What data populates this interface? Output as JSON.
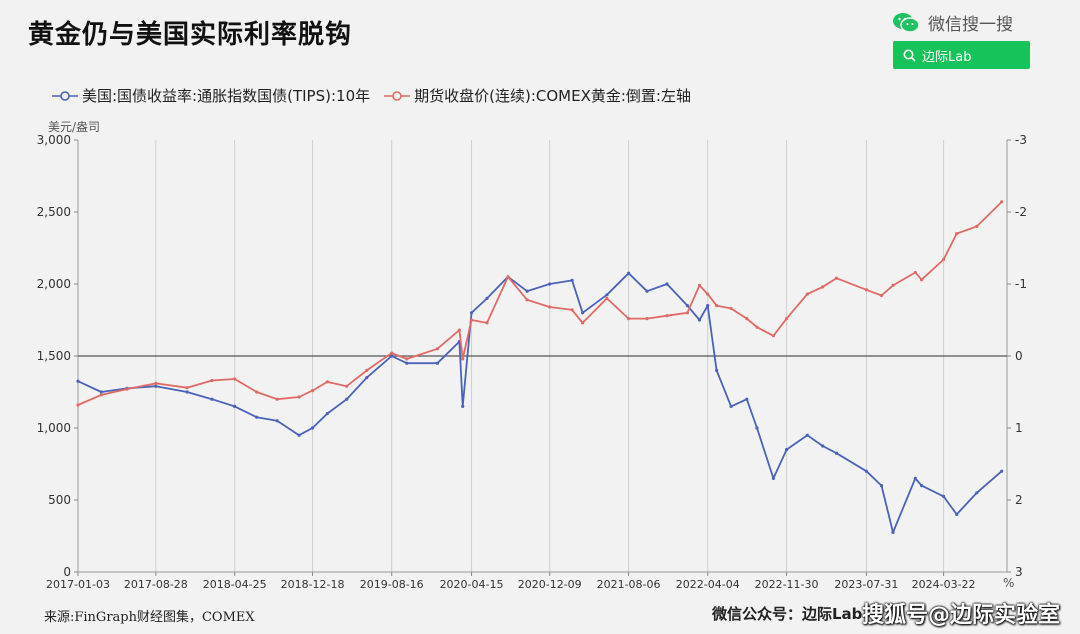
{
  "header": {
    "title": "黄金仍与美国实际利率脱钩"
  },
  "brand": {
    "wechat_label": "微信搜一搜",
    "wechat_icon": "wechat-icon",
    "search_icon": "search-icon",
    "search_label": "边际Lab",
    "search_color": "#16c25a"
  },
  "axis_units": {
    "left": "美元/盎司",
    "right": "%"
  },
  "footer": {
    "source": "来源:FinGraph财经图集，COMEX",
    "wechat": "微信公众号：边际Lab",
    "watermark": "搜狐号@边际实验室"
  },
  "chart_data": {
    "type": "line",
    "title": "黄金仍与美国实际利率脱钩",
    "x_tick_labels": [
      "2017-01-03",
      "2017-08-28",
      "2018-04-25",
      "2018-12-18",
      "2019-08-16",
      "2020-04-15",
      "2020-12-09",
      "2021-08-06",
      "2022-04-04",
      "2022-11-30",
      "2023-07-31",
      "2024-03-22"
    ],
    "left_axis": {
      "label": "美元/盎司",
      "ylim": [
        0,
        3000
      ],
      "ticks": [
        0,
        500,
        1000,
        1500,
        2000,
        2500,
        3000
      ],
      "tick_labels": [
        "0",
        "500",
        "1,000",
        "1,500",
        "2,000",
        "2,500",
        "3,000"
      ]
    },
    "right_axis": {
      "label": "%",
      "inverted": true,
      "ylim": [
        -3,
        3
      ],
      "ticks": [
        -3,
        -2,
        -1,
        0,
        1,
        2,
        3
      ],
      "tick_labels": [
        "-3",
        "-2",
        "-1",
        "0",
        "1",
        "2",
        "3"
      ]
    },
    "reference_line": {
      "axis": "left",
      "value": 1500
    },
    "grid": "vertical",
    "series": [
      {
        "name": "美国:国债收益率:通胀指数国债(TIPS):10年",
        "axis": "right",
        "color": "#4a63b8",
        "x": [
          "2017-01-03",
          "2017-03-15",
          "2017-06-01",
          "2017-08-28",
          "2017-12-01",
          "2018-02-15",
          "2018-04-25",
          "2018-07-01",
          "2018-09-01",
          "2018-11-07",
          "2018-12-18",
          "2019-02-01",
          "2019-04-01",
          "2019-06-01",
          "2019-08-16",
          "2019-10-01",
          "2020-01-02",
          "2020-03-09",
          "2020-03-19",
          "2020-04-15",
          "2020-06-01",
          "2020-08-04",
          "2020-10-01",
          "2020-12-09",
          "2021-02-15",
          "2021-03-19",
          "2021-06-01",
          "2021-08-06",
          "2021-10-01",
          "2021-12-01",
          "2022-02-01",
          "2022-03-10",
          "2022-04-04",
          "2022-05-01",
          "2022-06-14",
          "2022-08-01",
          "2022-09-01",
          "2022-10-21",
          "2022-11-30",
          "2023-02-01",
          "2023-03-20",
          "2023-05-01",
          "2023-07-31",
          "2023-09-15",
          "2023-10-20",
          "2023-12-27",
          "2024-01-15",
          "2024-03-22",
          "2024-05-01",
          "2024-07-01",
          "2024-09-15"
        ],
        "y": [
          0.35,
          0.5,
          0.45,
          0.42,
          0.5,
          0.6,
          0.7,
          0.85,
          0.9,
          1.1,
          1.0,
          0.8,
          0.6,
          0.3,
          0.0,
          0.1,
          0.1,
          -0.2,
          0.7,
          -0.6,
          -0.8,
          -1.1,
          -0.9,
          -1.0,
          -1.05,
          -0.6,
          -0.85,
          -1.15,
          -0.9,
          -1.0,
          -0.7,
          -0.5,
          -0.7,
          0.2,
          0.7,
          0.6,
          1.0,
          1.7,
          1.3,
          1.1,
          1.25,
          1.35,
          1.6,
          1.8,
          2.45,
          1.7,
          1.8,
          1.95,
          2.2,
          1.9,
          1.6
        ]
      },
      {
        "name": "期货收盘价(连续):COMEX黄金:倒置:左轴",
        "axis": "left",
        "color": "#e06a66",
        "x": [
          "2017-01-03",
          "2017-03-15",
          "2017-06-01",
          "2017-08-28",
          "2017-12-01",
          "2018-02-15",
          "2018-04-25",
          "2018-07-01",
          "2018-09-01",
          "2018-11-07",
          "2018-12-18",
          "2019-02-01",
          "2019-04-01",
          "2019-06-01",
          "2019-08-16",
          "2019-10-01",
          "2020-01-02",
          "2020-03-09",
          "2020-03-19",
          "2020-04-15",
          "2020-06-01",
          "2020-08-04",
          "2020-10-01",
          "2020-12-09",
          "2021-02-15",
          "2021-03-19",
          "2021-06-01",
          "2021-08-06",
          "2021-10-01",
          "2021-12-01",
          "2022-02-01",
          "2022-03-10",
          "2022-04-04",
          "2022-05-01",
          "2022-06-14",
          "2022-08-01",
          "2022-09-01",
          "2022-10-21",
          "2022-11-30",
          "2023-02-01",
          "2023-03-20",
          "2023-05-01",
          "2023-07-31",
          "2023-09-15",
          "2023-10-20",
          "2023-12-27",
          "2024-01-15",
          "2024-03-22",
          "2024-05-01",
          "2024-07-01",
          "2024-09-15"
        ],
        "y": [
          1160,
          1230,
          1270,
          1310,
          1280,
          1330,
          1340,
          1250,
          1200,
          1215,
          1260,
          1320,
          1290,
          1400,
          1520,
          1480,
          1550,
          1680,
          1480,
          1750,
          1730,
          2050,
          1890,
          1840,
          1820,
          1730,
          1900,
          1760,
          1760,
          1780,
          1800,
          1990,
          1930,
          1850,
          1830,
          1760,
          1700,
          1640,
          1760,
          1930,
          1980,
          2040,
          1960,
          1920,
          1990,
          2080,
          2030,
          2170,
          2350,
          2400,
          2570
        ]
      }
    ]
  }
}
